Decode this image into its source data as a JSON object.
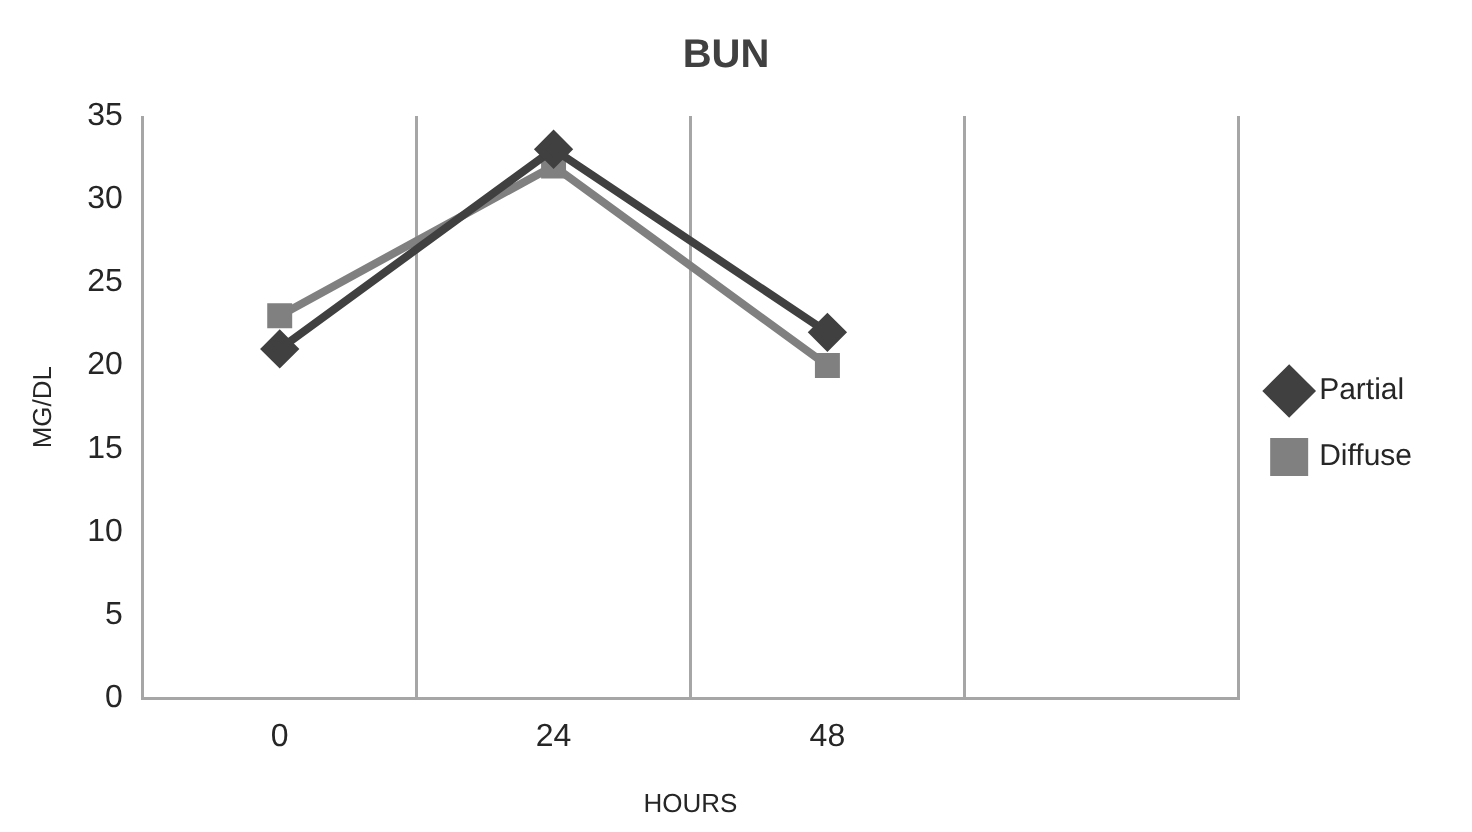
{
  "chart_data": {
    "type": "line",
    "title": "BUN",
    "xlabel": "HOURS",
    "ylabel": "MG/DL",
    "categories": [
      "0",
      "24",
      "48",
      null
    ],
    "series": [
      {
        "name": "Partial",
        "color": "#404040",
        "values": [
          21,
          33,
          22,
          null
        ],
        "marker": "diamond"
      },
      {
        "name": "Diffuse",
        "color": "#808080",
        "values": [
          23,
          32,
          20,
          null
        ],
        "marker": "square"
      }
    ],
    "ylim": [
      0,
      35
    ],
    "yticks": [
      0,
      5,
      10,
      15,
      20,
      25,
      30,
      35
    ],
    "grid": "x",
    "legend": "right"
  }
}
